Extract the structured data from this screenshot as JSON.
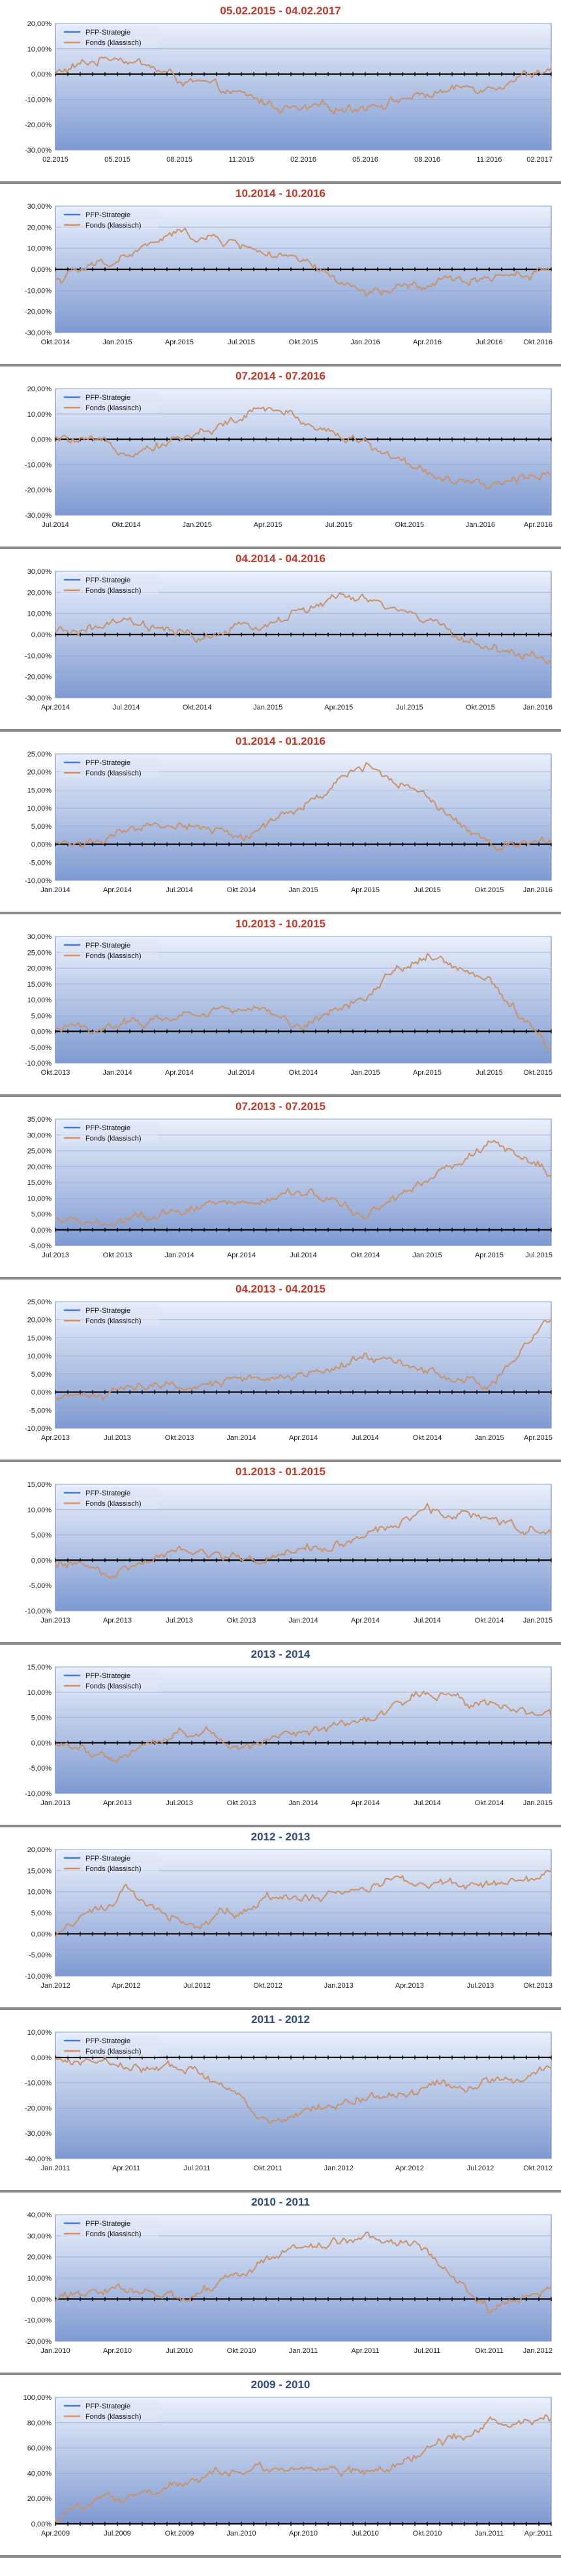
{
  "colors": {
    "title_red": "#c0392b",
    "title_blue": "#2e4a7d",
    "fonds_line": "#c8926a",
    "pfp_line": "#4a7cc4",
    "plot_bg_top": "#eaf0fb",
    "plot_bg_bottom": "#7f9ad1",
    "zero_line": "#000000",
    "separator": "#8c8c8c"
  },
  "chart_data": [
    {
      "type": "line",
      "title": "05.02.2015 - 04.02.2017",
      "title_color": "red",
      "legend": [
        "PFP-Strategie",
        "Fonds (klassisch)"
      ],
      "legend_position": "top-left",
      "ylim": [
        -30,
        20
      ],
      "y_step": 10,
      "y_tick_labels": [
        "-30,00%",
        "-20,00%",
        "-10,00%",
        "0,00%",
        "10,00%",
        "20,00%"
      ],
      "x_tick_labels": [
        "02.2015",
        "05.2015",
        "08.2015",
        "11.2015",
        "02.2016",
        "05.2016",
        "08.2016",
        "11.2016",
        "02.2017"
      ],
      "series": [
        {
          "name": "PFP-Strategie",
          "values": [
            0,
            0,
            0,
            0,
            0,
            0,
            0,
            0,
            0
          ]
        },
        {
          "name": "Fonds (klassisch)",
          "values": [
            0,
            8,
            -2,
            -9,
            -15,
            -12,
            -8,
            -4,
            3
          ]
        }
      ]
    },
    {
      "type": "line",
      "title": "10.2014 - 10.2016",
      "title_color": "red",
      "legend": [
        "PFP-Strategie",
        "Fonds (klassisch)"
      ],
      "legend_position": "top-left",
      "ylim": [
        -30,
        30
      ],
      "y_step": 10,
      "y_tick_labels": [
        "-30,00%",
        "-20,00%",
        "-10,00%",
        "0,00%",
        "10,00%",
        "20,00%",
        "30,00%"
      ],
      "x_tick_labels": [
        "Okt.2014",
        "Jan.2015",
        "Apr.2015",
        "Jul.2015",
        "Okt.2015",
        "Jan.2016",
        "Apr.2016",
        "Jul.2016",
        "Okt.2016"
      ],
      "series": [
        {
          "name": "PFP-Strategie",
          "values": [
            0,
            0,
            0,
            0,
            0,
            0,
            0,
            0,
            0
          ]
        },
        {
          "name": "Fonds (klassisch)",
          "values": [
            -5,
            5,
            17,
            12,
            2,
            -12,
            -8,
            -3,
            0
          ]
        }
      ]
    },
    {
      "type": "line",
      "title": "07.2014 - 07.2016",
      "title_color": "red",
      "legend": [
        "PFP-Strategie",
        "Fonds (klassisch)"
      ],
      "legend_position": "top-left",
      "ylim": [
        -30,
        20
      ],
      "y_step": 10,
      "y_tick_labels": [
        "-30,00%",
        "-20,00%",
        "-10,00%",
        "0,00%",
        "10,00%",
        "20,00%"
      ],
      "x_tick_labels": [
        "Jul.2014",
        "Okt.2014",
        "Jan.2015",
        "Apr.2015",
        "Jul.2015",
        "Okt.2015",
        "Jan.2016",
        "Apr.2016"
      ],
      "series": [
        {
          "name": "PFP-Strategie",
          "values": [
            0,
            0,
            0,
            0,
            0,
            0,
            0,
            0
          ]
        },
        {
          "name": "Fonds (klassisch)",
          "values": [
            0,
            -4,
            2,
            12,
            3,
            -10,
            -20,
            -12
          ]
        }
      ]
    },
    {
      "type": "line",
      "title": "04.2014 - 04.2016",
      "title_color": "red",
      "legend": [
        "PFP-Strategie",
        "Fonds (klassisch)"
      ],
      "legend_position": "top-left",
      "ylim": [
        -30,
        30
      ],
      "y_step": 10,
      "y_tick_labels": [
        "-30,00%",
        "-20,00%",
        "-10,00%",
        "0,00%",
        "10,00%",
        "20,00%",
        "30,00%"
      ],
      "x_tick_labels": [
        "Apr.2014",
        "Jul.2014",
        "Okt.2014",
        "Jan.2015",
        "Apr.2015",
        "Jul.2015",
        "Okt.2015",
        "Jan.2016"
      ],
      "series": [
        {
          "name": "PFP-Strategie",
          "values": [
            0,
            0,
            0,
            0,
            0,
            0,
            0,
            0
          ]
        },
        {
          "name": "Fonds (klassisch)",
          "values": [
            0,
            5,
            -2,
            5,
            18,
            10,
            -5,
            -12
          ]
        }
      ]
    },
    {
      "type": "line",
      "title": "01.2014 - 01.2016",
      "title_color": "red",
      "legend": [
        "PFP-Strategie",
        "Fonds (klassisch)"
      ],
      "legend_position": "top-left",
      "ylim": [
        -10,
        25
      ],
      "y_step": 5,
      "y_tick_labels": [
        "-10,00%",
        "-5,00%",
        "0,00%",
        "5,00%",
        "10,00%",
        "15,00%",
        "20,00%",
        "25,00%"
      ],
      "x_tick_labels": [
        "Jan.2014",
        "Apr.2014",
        "Jul.2014",
        "Okt.2014",
        "Jan.2015",
        "Apr.2015",
        "Jul.2015",
        "Okt.2015",
        "Jan.2016"
      ],
      "series": [
        {
          "name": "PFP-Strategie",
          "values": [
            0,
            0,
            0,
            0,
            0,
            0,
            0,
            0,
            0
          ]
        },
        {
          "name": "Fonds (klassisch)",
          "values": [
            0,
            2,
            6,
            2,
            10,
            22,
            14,
            0,
            2
          ]
        }
      ]
    },
    {
      "type": "line",
      "title": "10.2013 - 10.2015",
      "title_color": "red",
      "legend": [
        "PFP-Strategie",
        "Fonds (klassisch)"
      ],
      "legend_position": "top-left",
      "ylim": [
        -10,
        30
      ],
      "y_step": 5,
      "y_tick_labels": [
        "-10,00%",
        "-5,00%",
        "0,00%",
        "5,00%",
        "10,00%",
        "15,00%",
        "20,00%",
        "25,00%",
        "30,00%"
      ],
      "x_tick_labels": [
        "Okt.2013",
        "Jan.2014",
        "Apr.2014",
        "Jul.2014",
        "Okt.2014",
        "Jan.2015",
        "Apr.2015",
        "Jul.2015",
        "Okt.2015"
      ],
      "series": [
        {
          "name": "PFP-Strategie",
          "values": [
            0,
            0,
            0,
            0,
            0,
            0,
            0,
            0,
            0
          ]
        },
        {
          "name": "Fonds (klassisch)",
          "values": [
            0,
            2,
            5,
            8,
            2,
            12,
            25,
            15,
            -5
          ]
        }
      ]
    },
    {
      "type": "line",
      "title": "07.2013 - 07.2015",
      "title_color": "red",
      "legend": [
        "PFP-Strategie",
        "Fonds (klassisch)"
      ],
      "legend_position": "top-left",
      "ylim": [
        -5,
        35
      ],
      "y_step": 5,
      "y_tick_labels": [
        "-5,00%",
        "0,00%",
        "5,00%",
        "10,00%",
        "15,00%",
        "20,00%",
        "25,00%",
        "30,00%",
        "35,00%"
      ],
      "x_tick_labels": [
        "Jul.2013",
        "Okt.2013",
        "Jan.2014",
        "Apr.2014",
        "Jul.2014",
        "Okt.2014",
        "Jan.2015",
        "Apr.2015",
        "Jul.2015"
      ],
      "series": [
        {
          "name": "PFP-Strategie",
          "values": [
            0,
            0,
            0,
            0,
            0,
            0,
            0,
            0,
            0
          ]
        },
        {
          "name": "Fonds (klassisch)",
          "values": [
            3,
            2,
            5,
            8,
            12,
            5,
            15,
            28,
            18
          ]
        }
      ]
    },
    {
      "type": "line",
      "title": "04.2013 - 04.2015",
      "title_color": "red",
      "legend": [
        "PFP-Strategie",
        "Fonds (klassisch)"
      ],
      "legend_position": "top-left",
      "ylim": [
        -10,
        25
      ],
      "y_step": 5,
      "y_tick_labels": [
        "-10,00%",
        "-5,00%",
        "0,00%",
        "5,00%",
        "10,00%",
        "15,00%",
        "20,00%",
        "25,00%"
      ],
      "x_tick_labels": [
        "Apr.2013",
        "Jul.2013",
        "Okt.2013",
        "Jan.2014",
        "Apr.2014",
        "Jul.2014",
        "Okt.2014",
        "Jan.2015",
        "Apr.2015"
      ],
      "series": [
        {
          "name": "PFP-Strategie",
          "values": [
            0,
            0,
            0,
            0,
            0,
            0,
            0,
            0,
            0
          ]
        },
        {
          "name": "Fonds (klassisch)",
          "values": [
            -3,
            1,
            1,
            3,
            5,
            10,
            6,
            2,
            22
          ]
        }
      ]
    },
    {
      "type": "line",
      "title": "01.2013 - 01.2015",
      "title_color": "red",
      "legend": [
        "PFP-Strategie",
        "Fonds (klassisch)"
      ],
      "legend_position": "top-left",
      "ylim": [
        -10,
        15
      ],
      "y_step": 5,
      "y_tick_labels": [
        "-10,00%",
        "-5,00%",
        "0,00%",
        "5,00%",
        "10,00%",
        "15,00%"
      ],
      "x_tick_labels": [
        "Jan.2013",
        "Apr.2013",
        "Jul.2013",
        "Okt.2013",
        "Jan.2014",
        "Apr.2014",
        "Jul.2014",
        "Okt.2014",
        "Jan.2015"
      ],
      "series": [
        {
          "name": "PFP-Strategie",
          "values": [
            0,
            0,
            0,
            0,
            0,
            0,
            0,
            0,
            0
          ]
        },
        {
          "name": "Fonds (klassisch)",
          "values": [
            0,
            -3,
            3,
            0,
            2,
            5,
            10,
            8,
            5
          ]
        }
      ]
    },
    {
      "type": "line",
      "title": "2013 - 2014",
      "title_color": "blue",
      "legend": [
        "PFP-Strategie",
        "Fonds (klassisch)"
      ],
      "legend_position": "top-left",
      "ylim": [
        -10,
        15
      ],
      "y_step": 5,
      "y_tick_labels": [
        "-10,00%",
        "-5,00%",
        "0,00%",
        "5,00%",
        "10,00%",
        "15,00%"
      ],
      "x_tick_labels": [
        "Jan.2013",
        "Apr.2013",
        "Jul.2013",
        "Okt.2013",
        "Jan.2014",
        "Apr.2014",
        "Jul.2014",
        "Okt.2014",
        "Jan.2015"
      ],
      "series": [
        {
          "name": "PFP-Strategie",
          "values": [
            0,
            0,
            0,
            0,
            0,
            0,
            0,
            0,
            0
          ]
        },
        {
          "name": "Fonds (klassisch)",
          "values": [
            0,
            -3,
            3,
            0,
            2,
            5,
            10,
            8,
            5
          ]
        }
      ]
    },
    {
      "type": "line",
      "title": "2012 - 2013",
      "title_color": "blue",
      "legend": [
        "PFP-Strategie",
        "Fonds (klassisch)"
      ],
      "legend_position": "top-left",
      "ylim": [
        -10,
        20
      ],
      "y_step": 5,
      "y_tick_labels": [
        "-10,00%",
        "-5,00%",
        "0,00%",
        "5,00%",
        "10,00%",
        "15,00%",
        "20,00%"
      ],
      "x_tick_labels": [
        "Jan.2012",
        "Apr.2012",
        "Jul.2012",
        "Okt.2012",
        "Jan.2013",
        "Apr.2013",
        "Jul.2013",
        "Okt.2013"
      ],
      "series": [
        {
          "name": "PFP-Strategie",
          "values": [
            0,
            0,
            0,
            0,
            0,
            0,
            0,
            0
          ]
        },
        {
          "name": "Fonds (klassisch)",
          "values": [
            0,
            10,
            2,
            8,
            10,
            13,
            11,
            14
          ]
        }
      ]
    },
    {
      "type": "line",
      "title": "2011 - 2012",
      "title_color": "blue",
      "legend": [
        "PFP-Strategie",
        "Fonds (klassisch)"
      ],
      "legend_position": "top-left",
      "ylim": [
        -40,
        10
      ],
      "y_step": 10,
      "y_tick_labels": [
        "-40,00%",
        "-30,00%",
        "-20,00%",
        "-10,00%",
        "0,00%",
        "10,00%"
      ],
      "x_tick_labels": [
        "Jan.2011",
        "Apr.2011",
        "Jul.2011",
        "Okt.2011",
        "Jan.2012",
        "Apr.2012",
        "Jul.2012",
        "Okt.2012"
      ],
      "series": [
        {
          "name": "PFP-Strategie",
          "values": [
            0,
            0,
            0,
            0,
            0,
            0,
            0,
            0
          ]
        },
        {
          "name": "Fonds (klassisch)",
          "values": [
            0,
            -3,
            -5,
            -25,
            -18,
            -13,
            -10,
            -5
          ]
        }
      ]
    },
    {
      "type": "line",
      "title": "2010 - 2011",
      "title_color": "blue",
      "legend": [
        "PFP-Strategie",
        "Fonds (klassisch)"
      ],
      "legend_position": "top-left",
      "ylim": [
        -20,
        40
      ],
      "y_step": 10,
      "y_tick_labels": [
        "-20,00%",
        "-10,00%",
        "0,00%",
        "10,00%",
        "20,00%",
        "30,00%",
        "40,00%"
      ],
      "x_tick_labels": [
        "Jan.2010",
        "Apr.2010",
        "Jul.2010",
        "Okt.2010",
        "Jan.2011",
        "Apr.2011",
        "Jul.2011",
        "Okt.2011",
        "Jan.2012"
      ],
      "series": [
        {
          "name": "PFP-Strategie",
          "values": [
            0,
            0,
            0,
            0,
            0,
            0,
            0,
            0,
            0
          ]
        },
        {
          "name": "Fonds (klassisch)",
          "values": [
            0,
            5,
            0,
            12,
            25,
            30,
            22,
            -5,
            5
          ]
        }
      ]
    },
    {
      "type": "line",
      "title": "2009 - 2010",
      "title_color": "blue",
      "legend": [
        "PFP-Strategie",
        "Fonds (klassisch)"
      ],
      "legend_position": "top-left",
      "ylim": [
        0,
        100
      ],
      "y_step": 20,
      "y_tick_labels": [
        "0,00%",
        "20,00%",
        "40,00%",
        "60,00%",
        "80,00%",
        "100,00%"
      ],
      "x_tick_labels": [
        "Apr.2009",
        "Jul.2009",
        "Okt.2009",
        "Jan.2010",
        "Apr.2010",
        "Jul.2010",
        "Okt.2010",
        "Jan.2011",
        "Apr.2011"
      ],
      "series": [
        {
          "name": "PFP-Strategie",
          "values": [
            0,
            0,
            0,
            0,
            0,
            0,
            0,
            0,
            0
          ]
        },
        {
          "name": "Fonds (klassisch)",
          "values": [
            5,
            20,
            30,
            40,
            45,
            40,
            60,
            80,
            85
          ]
        }
      ]
    }
  ]
}
